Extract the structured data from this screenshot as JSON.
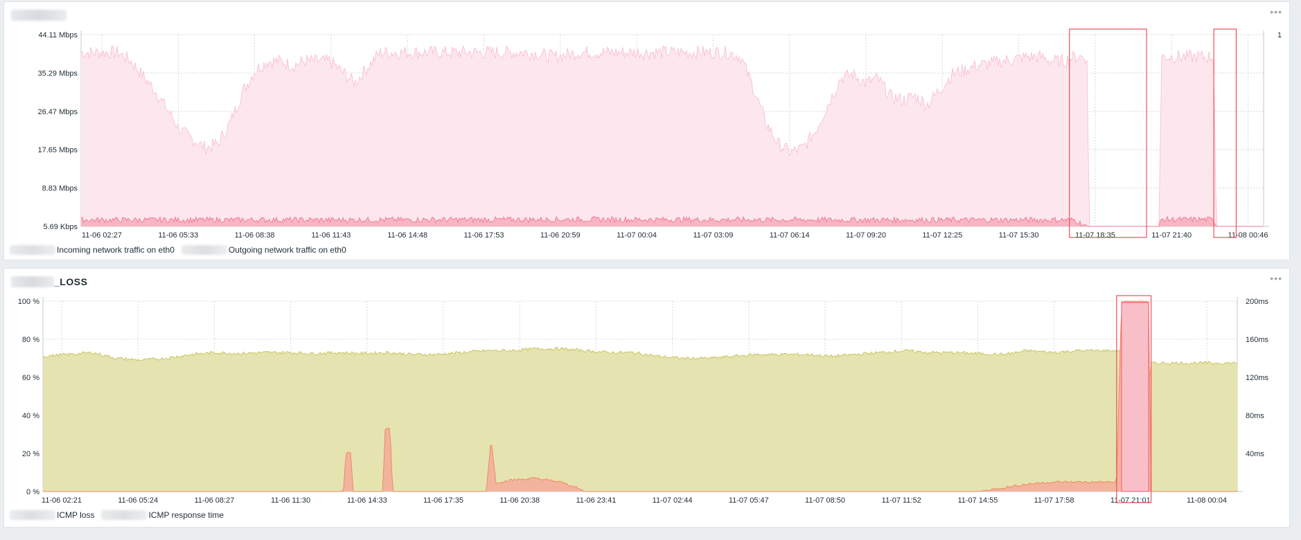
{
  "panels": [
    {
      "id": "traffic",
      "menu": "•••",
      "legend": [
        {
          "name": "Incoming network traffic on eth0",
          "color": "#f47e95"
        },
        {
          "name": "Outgoing network traffic on eth0",
          "color": "#f7c6d0"
        }
      ],
      "colors": {
        "fill_main": "#fde7ee",
        "line_main": "#f9c4d3",
        "fill_low": "#f8b6c4",
        "line_low": "#f07d96",
        "highlight": "#f04e5e"
      }
    },
    {
      "id": "loss",
      "title_suffix": "_LOSS",
      "menu": "•••",
      "legend": [
        {
          "name": "ICMP loss",
          "color": "#f4566f"
        },
        {
          "name": "ICMP response time",
          "color": "#c8c468"
        }
      ],
      "colors": {
        "fill_main": "#e5e4b0",
        "line_main": "#c9c460",
        "fill_low": "#f2b49d",
        "line_low": "#ef8a62",
        "loss_fill": "#f8bfc8",
        "loss_line": "#f45a73",
        "highlight": "#f04e5e"
      }
    }
  ],
  "chart_data": [
    {
      "type": "area",
      "ylim_labels": [
        "5.69 Kbps",
        "8.83 Mbps",
        "17.65 Mbps",
        "26.47 Mbps",
        "35.29 Mbps",
        "44.11 Mbps"
      ],
      "y_ticks": [
        0.00569,
        8.83,
        17.65,
        26.47,
        35.29,
        44.11
      ],
      "ylim": [
        0.00569,
        44.11
      ],
      "y_unit": "Mbps",
      "right_axis_labels": [
        "1"
      ],
      "x_tick_labels": [
        "11-06 02:27",
        "11-06 05:33",
        "11-06 08:38",
        "11-06 11:43",
        "11-06 14:48",
        "11-06 17:53",
        "11-06 20:59",
        "11-07 00:04",
        "11-07 03:09",
        "11-07 06:14",
        "11-07 09:20",
        "11-07 12:25",
        "11-07 15:30",
        "11-07 18:35",
        "11-07 21:40",
        "11-08 00:46"
      ],
      "x_range_hours": [
        0,
        47.5
      ],
      "grid": true,
      "legend_position": "bottom-left",
      "series": [
        {
          "name": "Incoming network traffic on eth0",
          "x_hours": [
            0,
            1.5,
            2,
            3,
            4,
            5,
            5.5,
            6,
            6.5,
            7,
            7.5,
            8,
            8.5,
            9,
            10,
            11,
            12,
            13,
            14,
            15,
            16,
            17,
            18,
            19,
            20,
            21,
            22,
            23,
            24,
            25,
            26,
            26.5,
            27,
            27.5,
            28,
            28.5,
            29,
            29.5,
            30,
            30.5,
            31,
            31.5,
            32,
            32.5,
            33,
            33.5,
            34,
            35,
            36,
            37,
            38,
            38.5,
            39,
            39.5,
            39.9,
            40.4,
            40.5,
            41.5,
            41.6,
            42,
            42.5,
            43,
            43.3,
            43.4,
            45.5,
            45.6,
            47.0
          ],
          "values": [
            40,
            40,
            38,
            31,
            22,
            18,
            19,
            24,
            31,
            36,
            38,
            38,
            37,
            38,
            38,
            33,
            40,
            40,
            40,
            40,
            40,
            40,
            40,
            39,
            40,
            40,
            40,
            40,
            40,
            40,
            40,
            39,
            32,
            24,
            19,
            17,
            18,
            22,
            28,
            34,
            35,
            33,
            34,
            30,
            29,
            30,
            28,
            35,
            37,
            38,
            39,
            39,
            38,
            38,
            39,
            39,
            0.00569,
            0.00569,
            0.00569,
            0.00569,
            0.00569,
            0.00569,
            0.00569,
            39,
            39,
            0.00569,
            0.00569
          ]
        },
        {
          "name": "Outgoing network traffic on eth0",
          "x_hours": [
            0,
            10,
            20,
            30,
            39.9,
            40.4,
            43.3,
            43.4,
            45.5,
            45.6,
            47.0
          ],
          "values": [
            1.5,
            1.5,
            1.6,
            1.5,
            1.5,
            0.00569,
            0.00569,
            1.6,
            1.6,
            0.00569,
            0.00569
          ]
        }
      ],
      "highlight_boxes_hours": [
        [
          39.7,
          42.8
        ],
        [
          45.5,
          46.4
        ]
      ]
    },
    {
      "type": "area",
      "ylim_labels": [
        "0 %",
        "20 %",
        "40 %",
        "60 %",
        "80 %",
        "100 %"
      ],
      "y_ticks": [
        0,
        20,
        40,
        60,
        80,
        100
      ],
      "ylim": [
        0,
        100
      ],
      "right_axis_labels": [
        "40ms",
        "80ms",
        "120ms",
        "160ms",
        "200ms"
      ],
      "right_ticks": [
        40,
        80,
        120,
        160,
        200
      ],
      "right_ylim": [
        0,
        200
      ],
      "x_tick_labels": [
        "11-06 02:21",
        "11-06 05:24",
        "11-06 08:27",
        "11-06 11:30",
        "11-06 14:33",
        "11-06 17:35",
        "11-06 20:38",
        "11-06 23:41",
        "11-07 02:44",
        "11-07 05:47",
        "11-07 08:50",
        "11-07 11:52",
        "11-07 14:55",
        "11-07 17:58",
        "11-07 21:01",
        "11-08 00:04"
      ],
      "x_range_hours": [
        0,
        48.5
      ],
      "grid": true,
      "legend_position": "bottom-left",
      "series": [
        {
          "name": "ICMP loss",
          "x_hours": [
            0,
            12.2,
            12.3,
            12.5,
            12.6,
            13.8,
            13.9,
            14.1,
            14.2,
            18.0,
            18.2,
            18.4,
            18.5,
            19,
            20,
            21,
            21.5,
            22,
            30,
            38,
            39,
            40,
            41,
            42,
            43,
            43.5,
            43.6,
            43.8,
            44.1,
            44.2,
            44.9,
            45.0,
            48.5
          ],
          "values": [
            0,
            0,
            20,
            20,
            0,
            0,
            33,
            33,
            0,
            0,
            28,
            4,
            5,
            6,
            7,
            5,
            3,
            0,
            0,
            0,
            2,
            4,
            5,
            5,
            5,
            5,
            5,
            100,
            100,
            100,
            100,
            0,
            0
          ]
        },
        {
          "name": "ICMP response time",
          "x_hours": [
            0,
            1,
            2,
            3,
            4,
            5,
            6,
            7,
            8,
            9,
            10,
            11,
            12,
            13,
            14,
            15,
            16,
            17,
            18,
            19,
            20,
            21,
            22,
            23,
            24,
            25,
            26,
            27,
            28,
            29,
            30,
            31,
            32,
            33,
            34,
            35,
            36,
            37,
            38,
            39,
            40,
            41,
            42,
            43,
            44,
            44.3,
            44.6,
            45,
            45.1,
            48.5
          ],
          "values": [
            142,
            144,
            146,
            140,
            138,
            140,
            144,
            146,
            145,
            146,
            146,
            145,
            146,
            145,
            146,
            144,
            144,
            146,
            148,
            148,
            150,
            150,
            148,
            146,
            146,
            142,
            140,
            140,
            142,
            144,
            144,
            144,
            142,
            144,
            146,
            148,
            146,
            146,
            145,
            144,
            148,
            146,
            148,
            148,
            148,
            0,
            0,
            135,
            135,
            135
          ]
        }
      ],
      "highlight_boxes_hours": [
        [
          43.6,
          45.0
        ]
      ]
    }
  ]
}
